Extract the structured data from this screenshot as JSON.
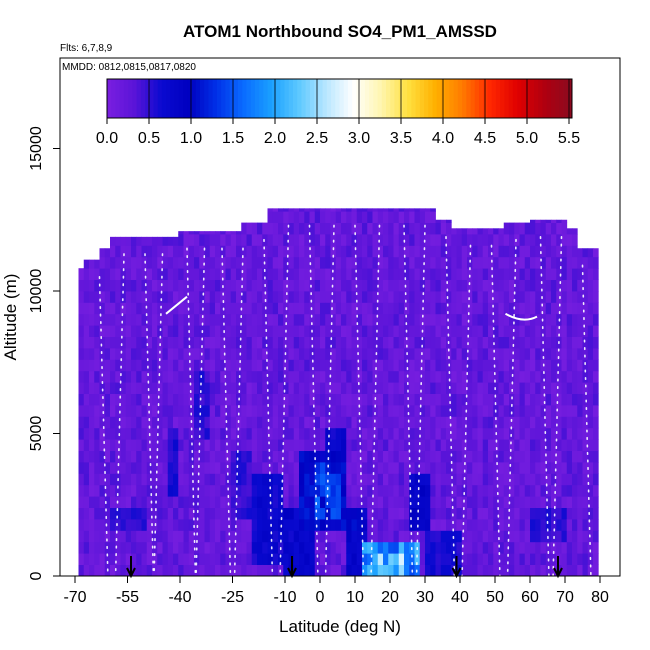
{
  "chart_data": {
    "type": "heatmap",
    "title": "ATOM1 Northbound SO4_PM1_AMSSD",
    "flights_note": "Flts: 6,7,8,9",
    "dates_note": "MMDD: 0812,0815,0817,0820",
    "xlabel": "Latitude (deg N)",
    "ylabel": "Altitude (m)",
    "xlim": [
      -70,
      80
    ],
    "ylim": [
      0,
      17500
    ],
    "x_ticks": [
      -70,
      -55,
      -40,
      -25,
      -10,
      0,
      10,
      20,
      30,
      40,
      50,
      60,
      70,
      80
    ],
    "y_ticks": [
      0,
      5000,
      10000,
      15000
    ],
    "colorbar": {
      "min": 0.0,
      "max": 5.5,
      "ticks": [
        "0.0",
        "0.5",
        "1.0",
        "1.5",
        "2.0",
        "2.5",
        "3.0",
        "3.5",
        "4.0",
        "4.5",
        "5.0",
        "5.5"
      ],
      "colors": [
        "#7a1fe0",
        "#5a14d8",
        "#0a0ad0",
        "#0000c0",
        "#0030e8",
        "#0a6cff",
        "#1aa0ff",
        "#5cc8ff",
        "#b8e6ff",
        "#ffffff",
        "#fff6b0",
        "#ffe040",
        "#ffb000",
        "#ff7a00",
        "#ff2800",
        "#e00000",
        "#b00010",
        "#8a0a20"
      ]
    },
    "arrow_latitudes": [
      -54,
      -8,
      39,
      68
    ],
    "background_value": 0.05,
    "enhanced_regions": [
      {
        "lat": [
          -43,
          -40
        ],
        "alt": [
          3000,
          5200
        ],
        "value": 0.6
      },
      {
        "lat": [
          -36,
          -32
        ],
        "alt": [
          5000,
          7200
        ],
        "value": 0.5
      },
      {
        "lat": [
          -25,
          -20
        ],
        "alt": [
          2200,
          4500
        ],
        "value": 0.5
      },
      {
        "lat": [
          -20,
          -10
        ],
        "alt": [
          300,
          3500
        ],
        "value": 0.7
      },
      {
        "lat": [
          -10,
          -2
        ],
        "alt": [
          0,
          2500
        ],
        "value": 0.8
      },
      {
        "lat": [
          -6,
          8
        ],
        "alt": [
          1500,
          4500
        ],
        "value": 1.0
      },
      {
        "lat": [
          -2,
          6
        ],
        "alt": [
          2000,
          3800
        ],
        "value": 1.3
      },
      {
        "lat": [
          2,
          8
        ],
        "alt": [
          4200,
          5000
        ],
        "value": 0.7
      },
      {
        "lat": [
          8,
          14
        ],
        "alt": [
          0,
          2500
        ],
        "value": 0.9
      },
      {
        "lat": [
          12,
          28
        ],
        "alt": [
          0,
          1000
        ],
        "value": 1.8
      },
      {
        "lat": [
          15,
          24
        ],
        "alt": [
          200,
          700
        ],
        "value": 2.2
      },
      {
        "lat": [
          26,
          32
        ],
        "alt": [
          1500,
          3500
        ],
        "value": 0.8
      },
      {
        "lat": [
          30,
          40
        ],
        "alt": [
          0,
          1500
        ],
        "value": 0.6
      },
      {
        "lat": [
          -60,
          -50
        ],
        "alt": [
          1500,
          2500
        ],
        "value": 0.5
      },
      {
        "lat": [
          60,
          70
        ],
        "alt": [
          1200,
          2200
        ],
        "value": 0.5
      }
    ]
  }
}
